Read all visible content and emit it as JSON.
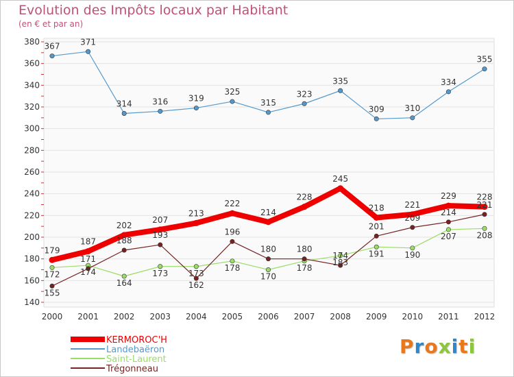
{
  "title": "Evolution des Impôts locaux par Habitant",
  "subtitle": "(en € et par an)",
  "logo": "Proxiti",
  "chart_data": {
    "type": "line",
    "title": "Evolution des Impôts locaux par Habitant",
    "subtitle": "(en € et par an)",
    "xlabel": "",
    "ylabel": "",
    "x": [
      "2000",
      "2001",
      "2002",
      "2003",
      "2004",
      "2005",
      "2006",
      "2007",
      "2008",
      "2009",
      "2010",
      "2011",
      "2012"
    ],
    "ylim": [
      140,
      380
    ],
    "yticks": [
      140,
      160,
      180,
      200,
      220,
      240,
      260,
      280,
      300,
      320,
      340,
      360,
      380
    ],
    "grid": "horizontal",
    "legend_position": "bottom-left",
    "series": [
      {
        "name": "KERMOROC'H",
        "color": "#ee0000",
        "values": [
          179,
          187,
          202,
          207,
          213,
          222,
          214,
          228,
          245,
          218,
          221,
          229,
          228
        ]
      },
      {
        "name": "Landebaëron",
        "color": "#5599cc",
        "values": [
          367,
          371,
          314,
          316,
          319,
          325,
          315,
          323,
          335,
          309,
          310,
          334,
          355
        ]
      },
      {
        "name": "Saint-Laurent",
        "color": "#99dd66",
        "values": [
          172,
          174,
          164,
          173,
          173,
          178,
          170,
          178,
          183,
          191,
          190,
          207,
          208
        ]
      },
      {
        "name": "Trégonneau",
        "color": "#772222",
        "values": [
          155,
          171,
          188,
          193,
          162,
          196,
          180,
          180,
          174,
          201,
          209,
          214,
          221
        ]
      }
    ]
  }
}
